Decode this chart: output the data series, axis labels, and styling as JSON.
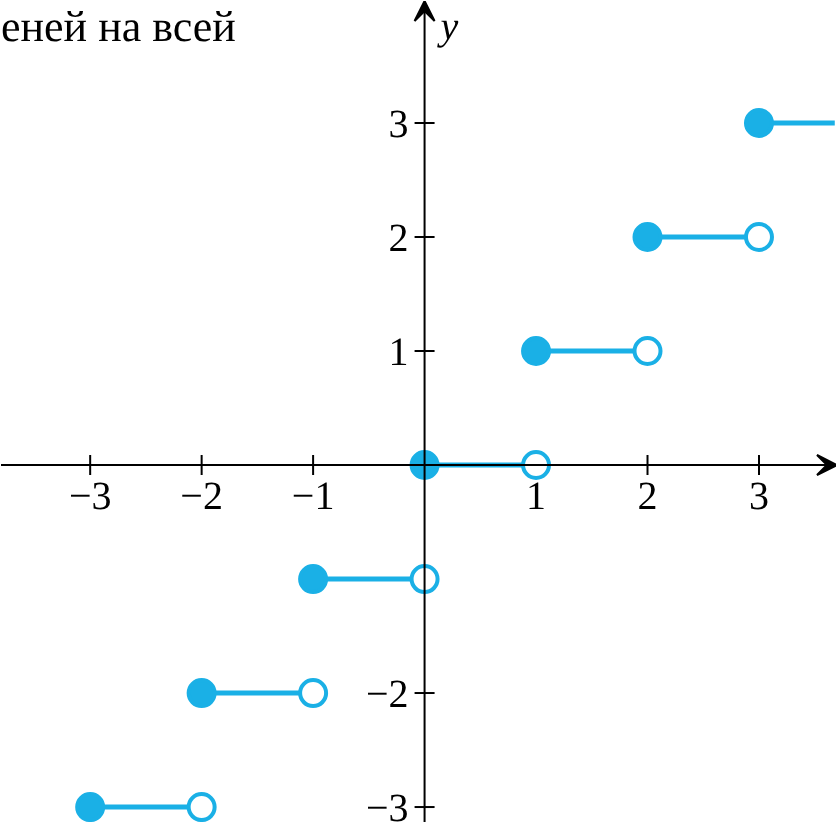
{
  "chart_data": {
    "type": "line",
    "ylabel": "y",
    "annotations": [
      "еней на всей"
    ],
    "xlim": [
      -3.8,
      3.7
    ],
    "ylim": [
      -3.14,
      4.07
    ],
    "xticks": [
      {
        "value": -3,
        "label": "−3"
      },
      {
        "value": -2,
        "label": "−2"
      },
      {
        "value": -1,
        "label": "−1"
      },
      1,
      2,
      3
    ],
    "yticks": [
      3,
      2,
      1,
      {
        "value": -1,
        "label": null
      },
      {
        "value": -2,
        "label": "−2"
      },
      {
        "value": -3,
        "label": "−3"
      }
    ],
    "grid": false,
    "marker": "none",
    "line_style": "solid",
    "series": [
      {
        "color": "#1ab0e6",
        "x": [
          -3,
          -2
        ],
        "values": [
          -3,
          -3
        ]
      },
      {
        "color": "#1ab0e6",
        "x": [
          -2,
          -1
        ],
        "values": [
          -2,
          -2
        ]
      },
      {
        "color": "#1ab0e6",
        "x": [
          -1,
          0
        ],
        "values": [
          -1,
          -1
        ]
      },
      {
        "color": "#1ab0e6",
        "x": [
          0,
          1
        ],
        "values": [
          0,
          0
        ]
      },
      {
        "color": "#1ab0e6",
        "x": [
          1,
          2
        ],
        "values": [
          1,
          1
        ]
      },
      {
        "color": "#1ab0e6",
        "x": [
          2,
          3
        ],
        "values": [
          2,
          2
        ]
      },
      {
        "color": "#1ab0e6",
        "x": [
          3,
          3.68
        ],
        "values": [
          3,
          3
        ]
      },
      {
        "type": "scatter",
        "marker": "circle",
        "color": "#1ab0e6",
        "x": [
          -3,
          -2,
          -1,
          0,
          1,
          2,
          3
        ],
        "values": [
          -3,
          -2,
          -1,
          0,
          1,
          2,
          3
        ]
      },
      {
        "type": "scatter",
        "marker": "circle",
        "color": "#1ab0e6",
        "x": [
          -2,
          -1,
          0,
          1,
          2,
          3
        ],
        "values": [
          -3,
          -2,
          -1,
          0,
          1,
          2
        ]
      }
    ]
  }
}
